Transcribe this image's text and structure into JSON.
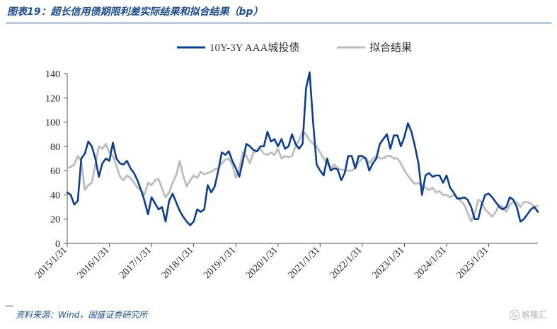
{
  "header": {
    "title": "图表19：超长信用债期限利差实际结果和拟合结果（bp）"
  },
  "footer": {
    "source": "资料来源：Wind，国盛证券研究所",
    "watermark": "格隆汇"
  },
  "colors": {
    "actual": "#0d3f8f",
    "fitted": "#bdbdbd",
    "accent": "#1f4e8c"
  },
  "chart_data": {
    "type": "line",
    "title": "",
    "xlabel": "",
    "ylabel": "",
    "ylim": [
      0,
      140
    ],
    "yticks": [
      0,
      20,
      40,
      60,
      80,
      100,
      120,
      140
    ],
    "xticks": [
      "2015/1/31",
      "2016/1/31",
      "2017/1/31",
      "2018/1/31",
      "2019/1/31",
      "2020/1/31",
      "2021/1/31",
      "2022/1/31",
      "2023/1/31",
      "2024/1/31",
      "2025/1/31"
    ],
    "x_start": "2015-01-31",
    "frequency": "monthly",
    "legend": "top-center",
    "grid": false,
    "series": [
      {
        "name": "10Y-3Y AAA城投债",
        "color": "#0d3f8f",
        "values": [
          42,
          40,
          32,
          35,
          70,
          74,
          84,
          80,
          70,
          55,
          66,
          70,
          68,
          83,
          70,
          66,
          65,
          68,
          62,
          58,
          52,
          44,
          35,
          24,
          38,
          33,
          28,
          30,
          18,
          35,
          41,
          34,
          27,
          22,
          18,
          15,
          18,
          28,
          26,
          28,
          48,
          42,
          47,
          60,
          75,
          73,
          76,
          68,
          62,
          55,
          68,
          82,
          80,
          77,
          76,
          80,
          80,
          92,
          84,
          86,
          80,
          86,
          78,
          80,
          90,
          82,
          78,
          82,
          128,
          141,
          100,
          65,
          60,
          56,
          70,
          60,
          62,
          61,
          52,
          58,
          72,
          72,
          62,
          72,
          72,
          70,
          60,
          66,
          70,
          82,
          86,
          90,
          78,
          89,
          89,
          80,
          88,
          99,
          92,
          80,
          66,
          40,
          56,
          58,
          55,
          56,
          56,
          50,
          56,
          46,
          42,
          37,
          37,
          38,
          36,
          30,
          20,
          20,
          32,
          40,
          41,
          38,
          34,
          30,
          28,
          30,
          38,
          36,
          30,
          18,
          20,
          24,
          28,
          30,
          26
        ]
      },
      {
        "name": "拟合结果",
        "color": "#bdbdbd",
        "values": [
          62,
          63,
          65,
          72,
          68,
          44,
          48,
          50,
          65,
          80,
          78,
          82,
          75,
          72,
          64,
          55,
          52,
          56,
          54,
          50,
          46,
          44,
          40,
          50,
          48,
          52,
          53,
          45,
          38,
          42,
          50,
          56,
          68,
          56,
          47,
          52,
          56,
          54,
          59,
          57,
          58,
          59,
          61,
          62,
          66,
          69,
          70,
          65,
          54,
          62,
          75,
          72,
          66,
          75,
          76,
          78,
          74,
          73,
          75,
          73,
          78,
          70,
          72,
          71,
          72,
          80,
          85,
          92,
          90,
          85,
          82,
          80,
          75,
          70,
          66,
          62,
          65,
          62,
          61,
          60,
          60,
          60,
          62,
          67,
          70,
          70,
          66,
          70,
          72,
          70,
          70,
          72,
          72,
          70,
          70,
          66,
          60,
          56,
          52,
          49,
          50,
          47,
          46,
          44,
          46,
          42,
          43,
          40,
          40,
          38,
          40,
          38,
          35,
          32,
          25,
          18,
          24,
          36,
          34,
          28,
          25,
          22,
          26,
          32,
          30,
          26,
          32,
          34,
          34,
          30,
          34,
          34,
          33,
          30,
          31
        ]
      }
    ]
  }
}
